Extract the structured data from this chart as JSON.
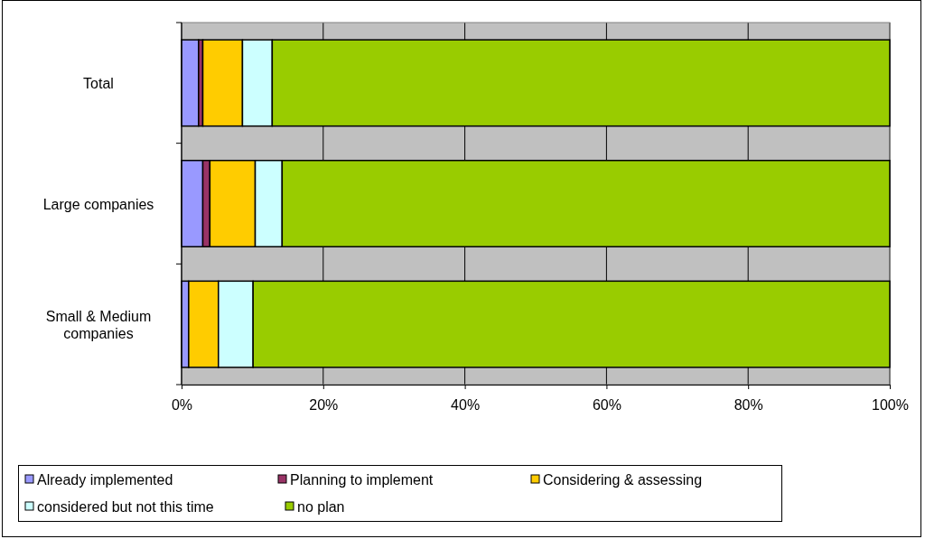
{
  "chart_data": {
    "type": "bar",
    "orientation": "horizontal",
    "stacked": true,
    "categories": [
      "Total",
      "Large companies",
      "Small & Medium companies"
    ],
    "series": [
      {
        "name": "Already implemented",
        "color": "#9999ff",
        "values": [
          2.4,
          3.0,
          1.0
        ]
      },
      {
        "name": "Planning to implement",
        "color": "#993366",
        "values": [
          0.6,
          1.0,
          0
        ]
      },
      {
        "name": "Considering & assessing",
        "color": "#ffcc00",
        "values": [
          5.6,
          6.4,
          4.2
        ]
      },
      {
        "name": "considered but not this time",
        "color": "#ccffff",
        "values": [
          4.2,
          3.8,
          4.9
        ]
      },
      {
        "name": "no plan",
        "color": "#99cc00",
        "values": [
          87.2,
          85.8,
          89.9
        ]
      }
    ],
    "xlim": [
      0,
      100
    ],
    "xticks": [
      {
        "value": 0,
        "label": "0%"
      },
      {
        "value": 20,
        "label": "20%"
      },
      {
        "value": 40,
        "label": "40%"
      },
      {
        "value": 60,
        "label": "60%"
      },
      {
        "value": 80,
        "label": "80%"
      },
      {
        "value": 100,
        "label": "100%"
      }
    ],
    "grid": "x",
    "legend": "bottom"
  }
}
